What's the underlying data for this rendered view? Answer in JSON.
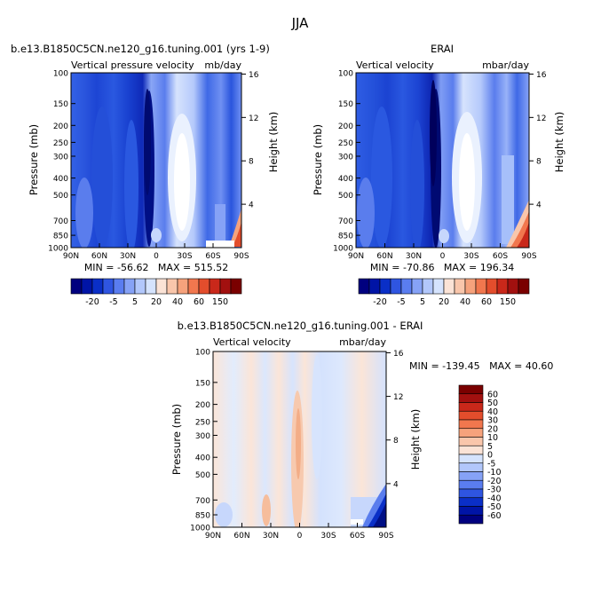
{
  "figure": {
    "title": "JJA"
  },
  "colors": {
    "palette": [
      "#00007f",
      "#0014a6",
      "#0a2fc7",
      "#2f55e1",
      "#5a7df0",
      "#86a2f6",
      "#b2c7fb",
      "#d5e3fd",
      "#fbe3d6",
      "#f9c6ab",
      "#f6a27c",
      "#f1774e",
      "#e34d2c",
      "#c9281a",
      "#a2100f",
      "#7a0000"
    ],
    "lines": "#000000"
  },
  "chart_data": [
    {
      "id": "model",
      "type": "heatmap",
      "title_left": "b.e13.B1850C5CN.ne120_g16.tuning.001 (yrs 1-9)",
      "subtitle_left": "Vertical pressure velocity",
      "subtitle_right": "mb/day",
      "ylabel": "Pressure (mb)",
      "ylabel_right": "Height (km)",
      "x_ticks": [
        "90N",
        "60N",
        "30N",
        "0",
        "30S",
        "60S",
        "90S"
      ],
      "y_ticks": [
        "100",
        "150",
        "200",
        "250",
        "300",
        "400",
        "500",
        "700",
        "850",
        "1000"
      ],
      "height_ticks": [
        "4",
        "8",
        "12",
        "16"
      ],
      "stats": "MIN = -56.62   MAX = 515.52",
      "colorbar_labels": [
        "-20",
        "-5",
        "5",
        "20",
        "40",
        "60",
        "150"
      ]
    },
    {
      "id": "erai",
      "type": "heatmap",
      "title_center": "ERAI",
      "subtitle_left": "Vertical velocity",
      "subtitle_right": "mbar/day",
      "ylabel": "Pressure (mb)",
      "ylabel_right": "Height (km)",
      "x_ticks": [
        "90N",
        "60N",
        "30N",
        "0",
        "30S",
        "60S",
        "90S"
      ],
      "y_ticks": [
        "100",
        "150",
        "200",
        "250",
        "300",
        "400",
        "500",
        "700",
        "850",
        "1000"
      ],
      "height_ticks": [
        "4",
        "8",
        "12",
        "16"
      ],
      "stats": "MIN = -70.86   MAX = 196.34",
      "colorbar_labels": [
        "-20",
        "-5",
        "5",
        "20",
        "40",
        "60",
        "150"
      ]
    },
    {
      "id": "diff",
      "type": "heatmap",
      "title_center": "b.e13.B1850C5CN.ne120_g16.tuning.001 - ERAI",
      "subtitle_left": "Vertical velocity",
      "subtitle_right": "mbar/day",
      "ylabel": "Pressure (mb)",
      "ylabel_right": "Height (km)",
      "x_ticks": [
        "90N",
        "60N",
        "30N",
        "0",
        "30S",
        "60S",
        "90S"
      ],
      "y_ticks": [
        "100",
        "150",
        "200",
        "250",
        "300",
        "400",
        "500",
        "700",
        "850",
        "1000"
      ],
      "height_ticks": [
        "4",
        "8",
        "12",
        "16"
      ],
      "stats": "MIN = -139.45   MAX = 40.60",
      "colorbar_labels": [
        "60",
        "50",
        "40",
        "30",
        "20",
        "10",
        "5",
        "0",
        "-5",
        "-10",
        "-20",
        "-30",
        "-40",
        "-50",
        "-60"
      ]
    }
  ]
}
